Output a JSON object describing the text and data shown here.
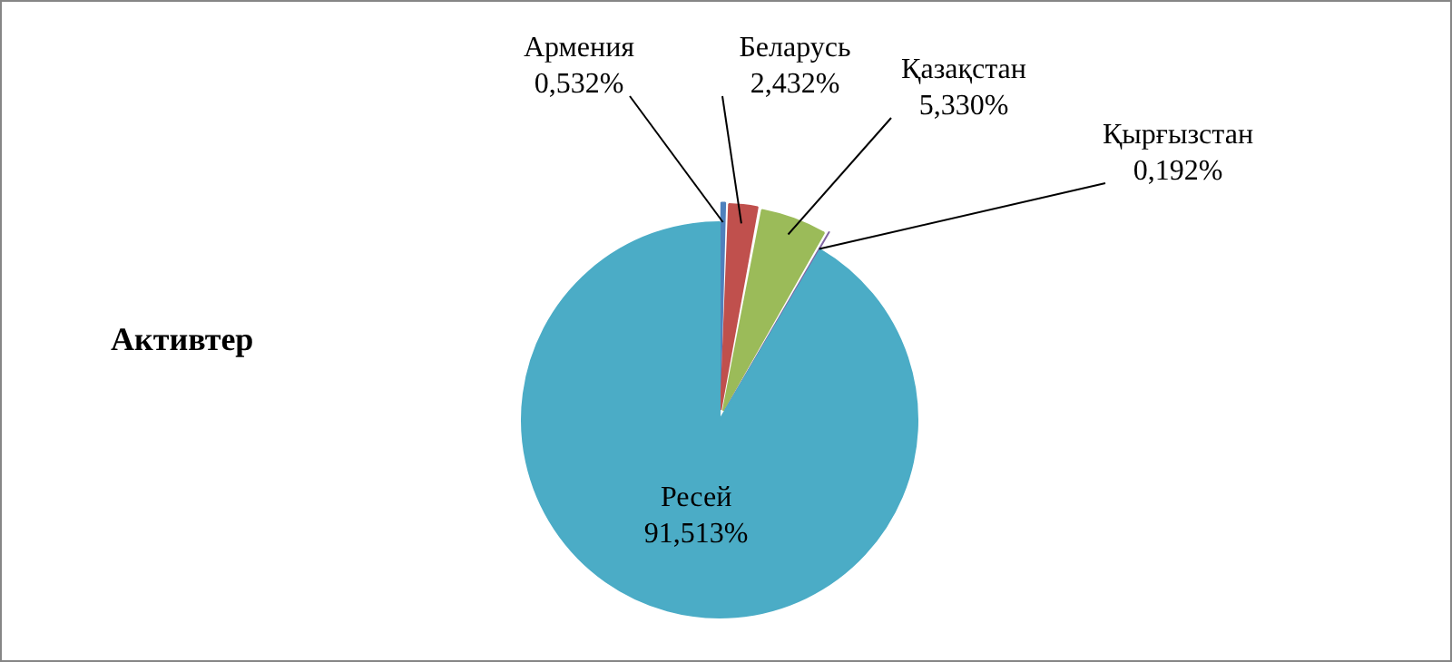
{
  "chart_data": {
    "type": "pie",
    "title": "Активтер",
    "categories": [
      "Армения",
      "Беларусь",
      "Қазақстан",
      "Қырғызстан",
      "Ресей"
    ],
    "values": [
      0.532,
      2.432,
      5.33,
      0.192,
      91.513
    ],
    "value_labels": [
      "0,532%",
      "2,432%",
      "5,330%",
      "0,192%",
      "91,513%"
    ],
    "colors": [
      "#4f81bd",
      "#c0504d",
      "#9bbb59",
      "#8064a2",
      "#4bacc6"
    ],
    "legend": false
  }
}
